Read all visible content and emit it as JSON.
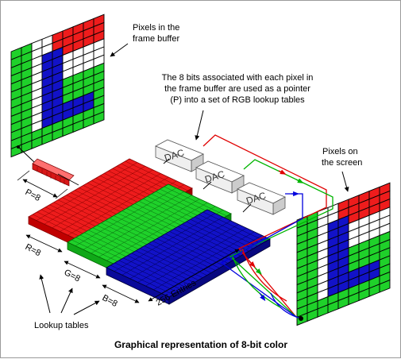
{
  "colors": {
    "red": "#ee1c1c",
    "green": "#1fd12a",
    "blue": "#1212c8",
    "white": "#ffffff",
    "grid": "#000000",
    "dac_fill": "#efefef",
    "wire_red": "#e00000",
    "wire_green": "#00b400",
    "wire_blue": "#0000dd"
  },
  "labels": {
    "frame_buffer": [
      "Pixels in the",
      "frame buffer"
    ],
    "pointer_note": [
      "The 8 bits associated with each pixel in",
      "the frame buffer are used as a pointer",
      "(P) into a set of RGB lookup tables"
    ],
    "screen": [
      "Pixels on",
      "the screen"
    ],
    "p_bits": "P=8",
    "r_bits": "R=8",
    "g_bits": "G=8",
    "b_bits": "B=8",
    "entries": "256 Entries",
    "lookup": "Lookup tables",
    "dac": "DAC",
    "caption": "Graphical representation of 8-bit color"
  },
  "pixel_pattern": [
    "GGWWRRRRR",
    "GGWWRRRRR",
    "GGWBBRRRR",
    "GGWBBWWWW",
    "GGWBBWWWW",
    "GGWBBWWWW",
    "GGWBBGGGG",
    "GGWBBGGGG",
    "GGWBBGGGG",
    "GGWBBBBBG",
    "GGWBBBBBG",
    "GGGGGGGGG",
    "GGGGGGGGG"
  ]
}
